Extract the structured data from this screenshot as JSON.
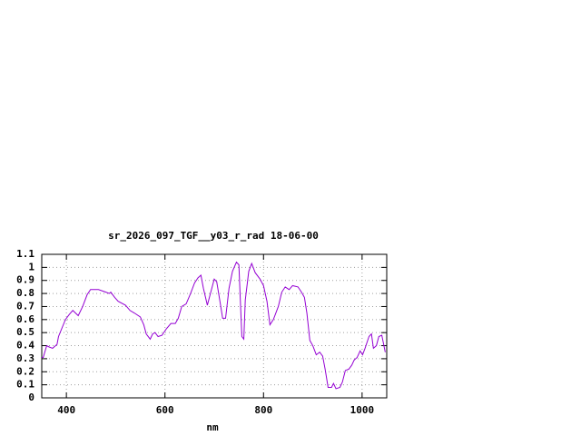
{
  "chart_data": {
    "type": "line",
    "title": "sr_2026_097_TGF__y03_r_rad 18-06-00",
    "xlabel": "nm",
    "x": [
      350,
      353,
      360,
      365,
      372,
      381,
      384,
      398,
      406,
      413,
      424,
      433,
      442,
      449,
      465,
      480,
      487,
      490,
      498,
      505,
      520,
      529,
      538,
      550,
      557,
      562,
      570,
      575,
      580,
      586,
      594,
      603,
      612,
      621,
      627,
      634,
      643,
      652,
      660,
      667,
      673,
      678,
      686,
      693,
      700,
      705,
      712,
      717,
      723,
      730,
      737,
      745,
      750,
      756,
      760,
      763,
      770,
      776,
      783,
      793,
      800,
      807,
      813,
      820,
      830,
      837,
      844,
      852,
      859,
      870,
      877,
      883,
      888,
      894,
      900,
      907,
      914,
      920,
      925,
      931,
      938,
      942,
      947,
      955,
      960,
      966,
      973,
      979,
      984,
      990,
      996,
      1001,
      1006,
      1014,
      1019,
      1023,
      1029,
      1034,
      1040,
      1047
    ],
    "series": [
      {
        "name": "sr_2026_097_TGF__y03_r_rad",
        "color": "#9400d3",
        "values": [
          0.31,
          0.31,
          0.4,
          0.39,
          0.38,
          0.41,
          0.47,
          0.6,
          0.64,
          0.67,
          0.63,
          0.7,
          0.79,
          0.83,
          0.83,
          0.81,
          0.8,
          0.81,
          0.77,
          0.74,
          0.71,
          0.67,
          0.65,
          0.62,
          0.56,
          0.49,
          0.45,
          0.49,
          0.5,
          0.47,
          0.48,
          0.53,
          0.57,
          0.57,
          0.61,
          0.7,
          0.72,
          0.8,
          0.88,
          0.92,
          0.94,
          0.84,
          0.71,
          0.81,
          0.91,
          0.89,
          0.73,
          0.61,
          0.61,
          0.84,
          0.97,
          1.04,
          1.02,
          0.47,
          0.45,
          0.75,
          0.97,
          1.03,
          0.96,
          0.91,
          0.86,
          0.74,
          0.56,
          0.6,
          0.7,
          0.81,
          0.85,
          0.83,
          0.86,
          0.85,
          0.81,
          0.77,
          0.65,
          0.44,
          0.4,
          0.33,
          0.35,
          0.32,
          0.22,
          0.08,
          0.08,
          0.11,
          0.07,
          0.08,
          0.12,
          0.21,
          0.22,
          0.25,
          0.29,
          0.31,
          0.36,
          0.33,
          0.38,
          0.47,
          0.49,
          0.38,
          0.4,
          0.47,
          0.48,
          0.35
        ]
      }
    ],
    "xlim": [
      350,
      1050
    ],
    "xticks": [
      400,
      600,
      800,
      1000
    ],
    "ylim": [
      0,
      1.1
    ],
    "yticks": [
      0,
      0.1,
      0.2,
      0.3,
      0.4,
      0.5,
      0.6,
      0.7,
      0.8,
      0.9,
      1,
      1.1
    ],
    "grid": true
  }
}
